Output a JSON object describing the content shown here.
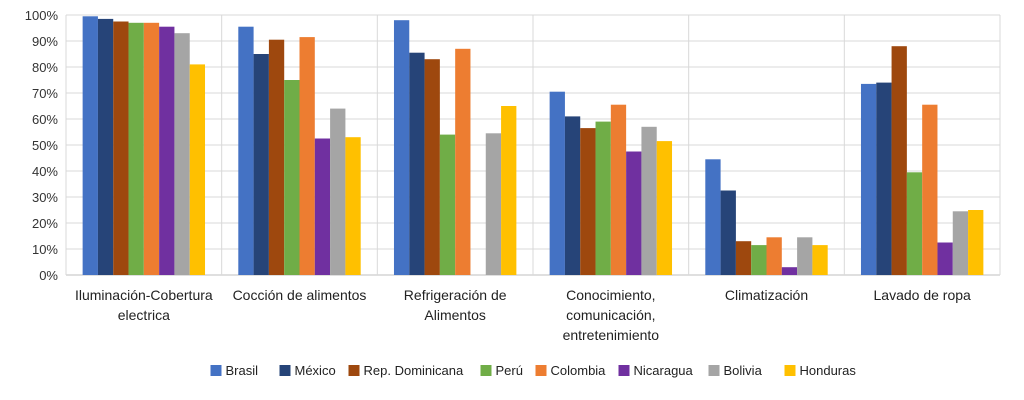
{
  "chart_data": {
    "type": "bar",
    "title": "",
    "xlabel": "",
    "ylabel": "",
    "ylim": [
      0,
      100
    ],
    "yticks": [
      "0%",
      "10%",
      "20%",
      "30%",
      "40%",
      "50%",
      "60%",
      "70%",
      "80%",
      "90%",
      "100%"
    ],
    "grid": true,
    "legend_position": "bottom",
    "categories": [
      [
        "Iluminación-Cobertura",
        "electrica"
      ],
      [
        "Cocción de alimentos"
      ],
      [
        "Refrigeración de",
        "Alimentos"
      ],
      [
        "Conocimiento,",
        "comunicación,",
        "entretenimiento"
      ],
      [
        "Climatización"
      ],
      [
        "Lavado de ropa"
      ]
    ],
    "series": [
      {
        "name": "Brasil",
        "color": "#4472C4",
        "values": [
          99.5,
          95.5,
          98,
          70.5,
          44.5,
          73.5
        ]
      },
      {
        "name": "México",
        "color": "#264478",
        "values": [
          98.5,
          85,
          85.5,
          61,
          32.5,
          74
        ]
      },
      {
        "name": "Rep. Dominicana",
        "color": "#9E480E",
        "values": [
          97.5,
          90.5,
          83,
          56.5,
          13,
          88
        ]
      },
      {
        "name": "Perú",
        "color": "#70AD47",
        "values": [
          97,
          75,
          54,
          59,
          11.5,
          39.5
        ]
      },
      {
        "name": "Colombia",
        "color": "#ED7D31",
        "values": [
          97,
          91.5,
          87,
          65.5,
          14.5,
          65.5
        ]
      },
      {
        "name": "Nicaragua",
        "color": "#7030A0",
        "values": [
          95.5,
          52.5,
          0,
          47.5,
          3,
          12.5
        ]
      },
      {
        "name": "Bolivia",
        "color": "#A5A5A5",
        "values": [
          93,
          64,
          54.5,
          57,
          14.5,
          24.5
        ]
      },
      {
        "name": "Honduras",
        "color": "#FFC000",
        "values": [
          81,
          53,
          65,
          51.5,
          11.5,
          25
        ]
      }
    ]
  }
}
